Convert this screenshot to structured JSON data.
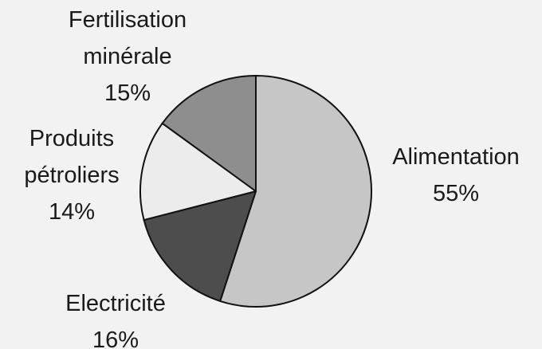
{
  "chart_data": {
    "type": "pie",
    "categories": [
      "Alimentation",
      "Electricité",
      "Produits pétroliers",
      "Fertilisation minérale"
    ],
    "values": [
      55,
      16,
      14,
      15
    ],
    "value_labels": [
      "55%",
      "16%",
      "14%",
      "15%"
    ],
    "colors": [
      "#c6c6c6",
      "#4d4d4d",
      "#ececec",
      "#8e8e8e"
    ]
  }
}
